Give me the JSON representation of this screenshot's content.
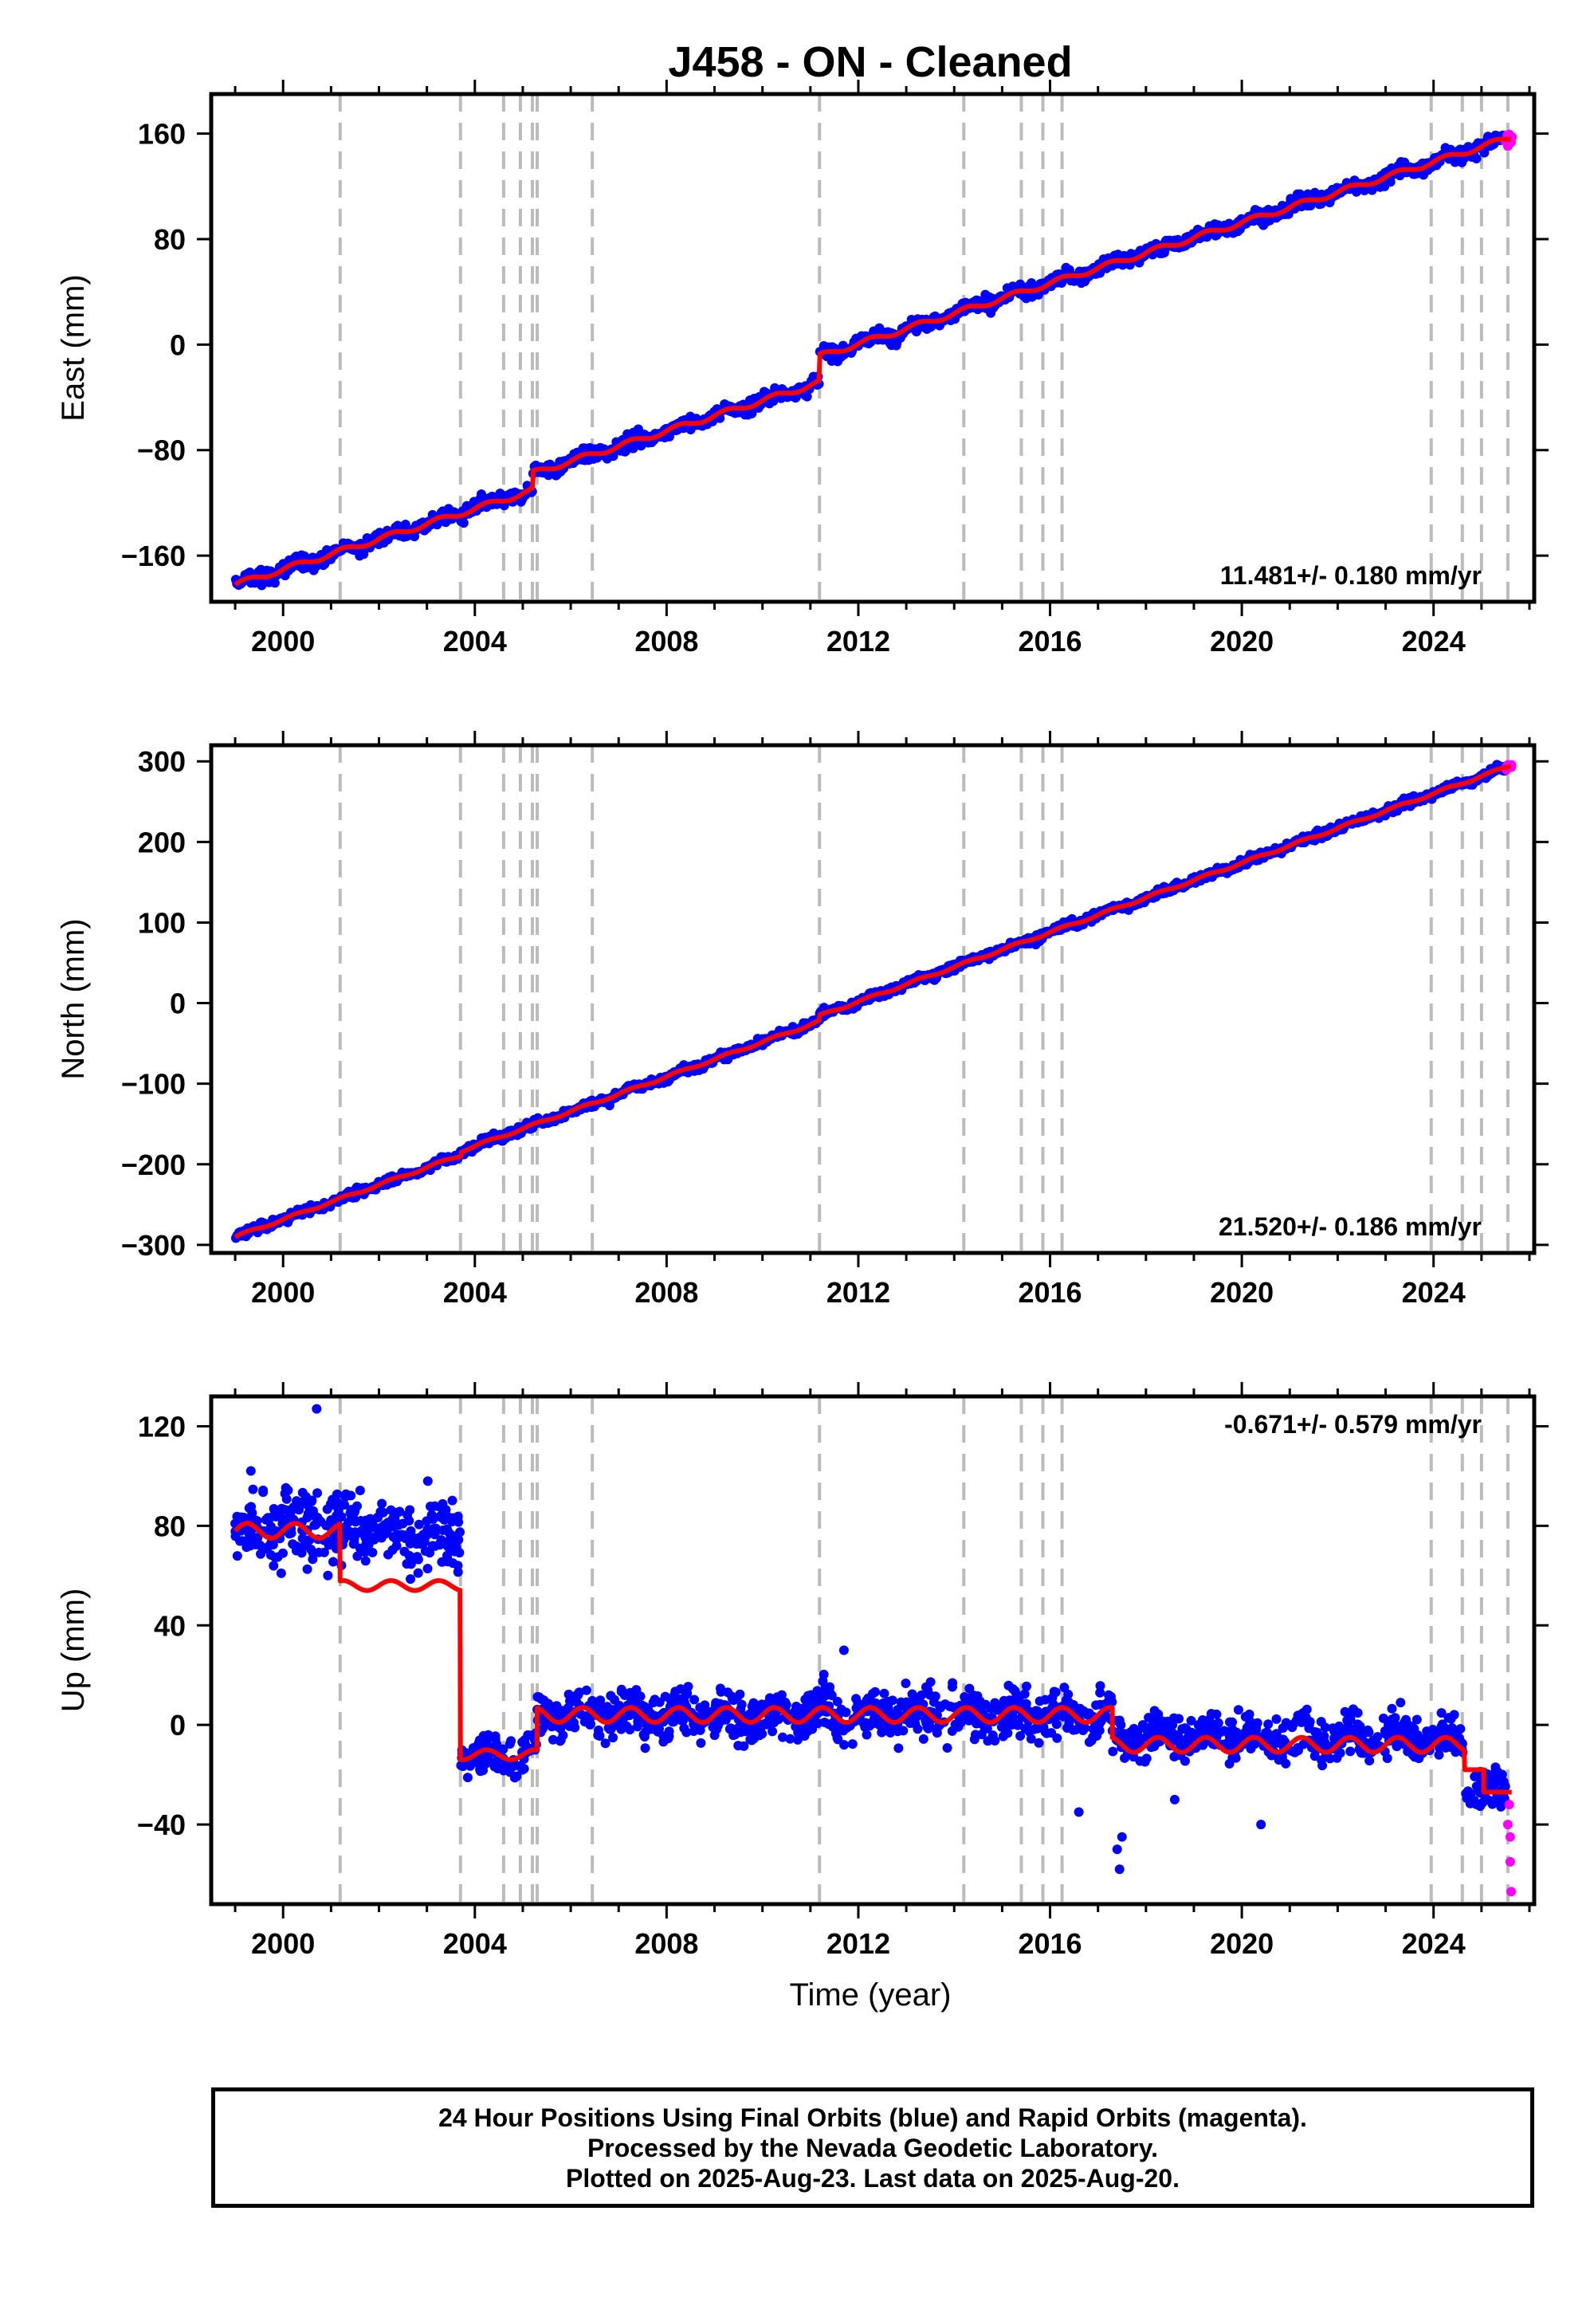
{
  "title": "J458  - ON - Cleaned",
  "xlabel": "Time (year)",
  "footer": {
    "line1": "24 Hour Positions Using Final Orbits (blue) and Rapid Orbits (magenta).",
    "line2": "Processed by the Nevada Geodetic Laboratory.",
    "line3": "Plotted on 2025-Aug-23. Last data on 2025-Aug-20."
  },
  "colors": {
    "final": "#0000ff",
    "rapid": "#ff00ff",
    "model": "#ff0000",
    "steps": "#bbbbbb"
  },
  "chart_data": [
    {
      "type": "scatter",
      "ylabel": "East (mm)",
      "xlim": [
        1998.5,
        2026.1
      ],
      "ylim": [
        -195,
        190
      ],
      "yticks": [
        -160,
        -80,
        0,
        80,
        160
      ],
      "xticks": [
        2000,
        2004,
        2008,
        2012,
        2016,
        2020,
        2024
      ],
      "rate": "11.481+/- 0.180 mm/yr",
      "rate_position": "bottom-right",
      "model": {
        "slope": 11.5,
        "intercept_at_1999": -182,
        "amplitude": 2,
        "noise": 2.5,
        "offsets": [
          {
            "year": 2005.2,
            "value": 13
          },
          {
            "year": 2011.19,
            "value": 20
          }
        ]
      },
      "series": [
        {
          "name": "Final Orbits (blue)",
          "x_range": [
            1999.0,
            2025.5
          ],
          "jitter": 5
        },
        {
          "name": "Rapid Orbits (magenta)",
          "x_range": [
            2025.5,
            2025.63
          ],
          "jitter": 5
        }
      ]
    },
    {
      "type": "scatter",
      "ylabel": "North (mm)",
      "xlim": [
        1998.5,
        2026.1
      ],
      "ylim": [
        -310,
        320
      ],
      "yticks": [
        -300,
        -200,
        -100,
        0,
        100,
        200,
        300
      ],
      "xticks": [
        2000,
        2004,
        2008,
        2012,
        2016,
        2020,
        2024
      ],
      "rate": "21.520+/- 0.186 mm/yr",
      "rate_position": "bottom-right",
      "model": {
        "slope": 21.52,
        "intercept_at_1999": -290,
        "amplitude": 1.5,
        "noise": 2,
        "offsets": [
          {
            "year": 2003.7,
            "value": 5
          },
          {
            "year": 2011.19,
            "value": 7
          }
        ]
      },
      "series": [
        {
          "name": "Final Orbits (blue)",
          "x_range": [
            1999.0,
            2025.5
          ],
          "jitter": 5
        },
        {
          "name": "Rapid Orbits (magenta)",
          "x_range": [
            2025.5,
            2025.63
          ],
          "jitter": 5
        }
      ]
    },
    {
      "type": "scatter",
      "ylabel": "Up (mm)",
      "xlim": [
        1998.5,
        2026.1
      ],
      "ylim": [
        -72,
        132
      ],
      "yticks": [
        -40,
        0,
        40,
        80,
        120
      ],
      "xticks": [
        2000,
        2004,
        2008,
        2012,
        2016,
        2020,
        2024
      ],
      "rate": "-0.671+/- 0.579 mm/yr",
      "rate_position": "top-right",
      "model_segments": [
        {
          "from": 1999.0,
          "to": 2001.19,
          "level": 78,
          "amp": 3
        },
        {
          "from": 2001.19,
          "to": 2003.7,
          "level": 56,
          "amp": 2
        },
        {
          "from": 2003.7,
          "to": 2005.3,
          "level": -12,
          "amp": 2
        },
        {
          "from": 2005.3,
          "to": 2017.3,
          "level": 4,
          "amp": 3
        },
        {
          "from": 2017.3,
          "to": 2024.65,
          "level": -8,
          "amp": 3
        },
        {
          "from": 2024.65,
          "to": 2025.05,
          "level": -18,
          "amp": 0
        },
        {
          "from": 2025.05,
          "to": 2025.63,
          "level": -27,
          "amp": 0
        }
      ],
      "scatter_segments": [
        {
          "from": 1999.0,
          "to": 2001.19,
          "center": 80,
          "jitter": 13
        },
        {
          "from": 2001.19,
          "to": 2003.7,
          "center": 78,
          "jitter": 12
        },
        {
          "from": 2003.7,
          "to": 2005.3,
          "center": -12,
          "jitter": 6
        },
        {
          "from": 2005.3,
          "to": 2017.3,
          "center": 4,
          "jitter": 8
        },
        {
          "from": 2017.3,
          "to": 2024.65,
          "center": -5,
          "jitter": 7
        },
        {
          "from": 2024.65,
          "to": 2025.5,
          "center": -25,
          "jitter": 7
        }
      ],
      "extra_points": [
        {
          "x": 2017.45,
          "y": -58
        },
        {
          "x": 2017.4,
          "y": -50
        },
        {
          "x": 2017.5,
          "y": -45
        },
        {
          "x": 2016.6,
          "y": -35
        },
        {
          "x": 2018.6,
          "y": -30
        },
        {
          "x": 2020.4,
          "y": -40
        },
        {
          "x": 2000.7,
          "y": 127
        },
        {
          "x": 2011.7,
          "y": 30
        }
      ],
      "rapid_points": [
        {
          "x": 2025.58,
          "y": -32
        },
        {
          "x": 2025.6,
          "y": -45
        },
        {
          "x": 2025.6,
          "y": -55
        },
        {
          "x": 2025.62,
          "y": -67
        },
        {
          "x": 2025.55,
          "y": -40
        }
      ]
    }
  ],
  "steps": [
    2001.19,
    2003.7,
    2004.6,
    2004.95,
    2005.2,
    2005.3,
    2006.45,
    2011.19,
    2014.2,
    2015.4,
    2015.85,
    2016.25,
    2023.95,
    2024.6,
    2025.0,
    2025.55
  ]
}
